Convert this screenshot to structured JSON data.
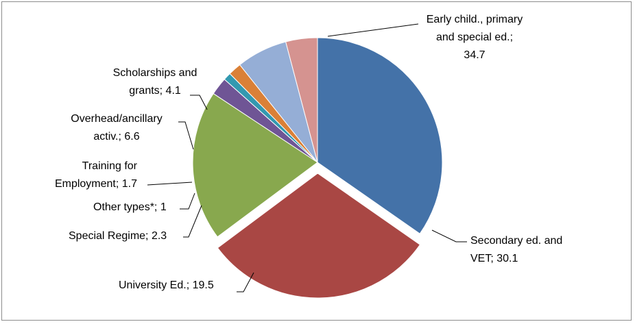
{
  "chart_data": {
    "type": "pie",
    "title": "",
    "start_angle_deg": 0,
    "direction": "clockwise",
    "slices": [
      {
        "name": "Early child., primary and special ed.",
        "value": 34.7,
        "lines": [
          "Early child., primary",
          "and special ed.;",
          "34.7"
        ],
        "color": "#4472A8",
        "exploded": false
      },
      {
        "name": "Secondary ed. and VET",
        "value": 30.1,
        "lines": [
          "Secondary ed. and",
          "VET; 30.1"
        ],
        "color": "#A94744",
        "exploded": true
      },
      {
        "name": "University Ed.",
        "value": 19.5,
        "lines": [
          "University Ed.; 19.5"
        ],
        "color": "#88A84E",
        "exploded": false
      },
      {
        "name": "Special Regime",
        "value": 2.3,
        "lines": [
          "Special Regime; 2.3"
        ],
        "color": "#6F5595",
        "exploded": false
      },
      {
        "name": "Other types*",
        "value": 1,
        "lines": [
          "Other types*; 1"
        ],
        "color": "#3399B0",
        "exploded": false
      },
      {
        "name": "Training for Employment",
        "value": 1.7,
        "lines": [
          "Training for",
          "Employment; 1.7"
        ],
        "color": "#DA8037",
        "exploded": false
      },
      {
        "name": "Overhead/ancillary activ.",
        "value": 6.6,
        "lines": [
          "Overhead/ancillary",
          "activ.; 6.6"
        ],
        "color": "#95AED6",
        "exploded": false
      },
      {
        "name": "Scholarships and grants",
        "value": 4.1,
        "lines": [
          "Scholarships and",
          "grants; 4.1"
        ],
        "color": "#D59390",
        "exploded": false
      }
    ]
  }
}
